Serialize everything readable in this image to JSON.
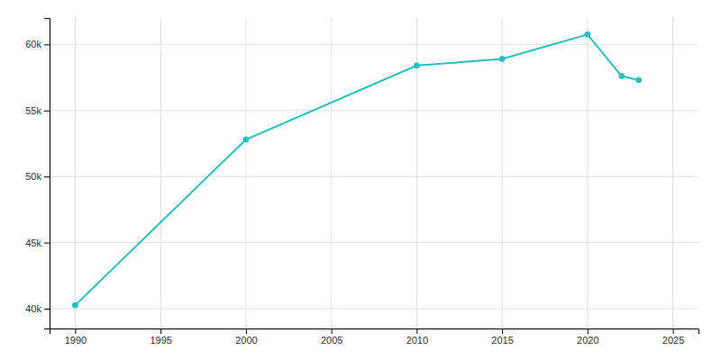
{
  "chart_data": {
    "type": "line",
    "x": [
      1990,
      2000,
      2010,
      2015,
      2020,
      2022,
      2023
    ],
    "values": [
      40263,
      52800,
      58400,
      58900,
      60750,
      57600,
      57300
    ],
    "color": "#29BFBF",
    "marker": "circle",
    "xlim": [
      1988.5,
      2026.5
    ],
    "ylim": [
      38500,
      62000
    ],
    "xticks": [
      1990,
      1995,
      2000,
      2005,
      2010,
      2015,
      2020,
      2025
    ],
    "yticks": [
      {
        "value": 40000,
        "label": "40k"
      },
      {
        "value": 45000,
        "label": "45k"
      },
      {
        "value": 50000,
        "label": "50k"
      },
      {
        "value": 55000,
        "label": "55k"
      },
      {
        "value": 60000,
        "label": "60k"
      }
    ],
    "grid": true
  }
}
